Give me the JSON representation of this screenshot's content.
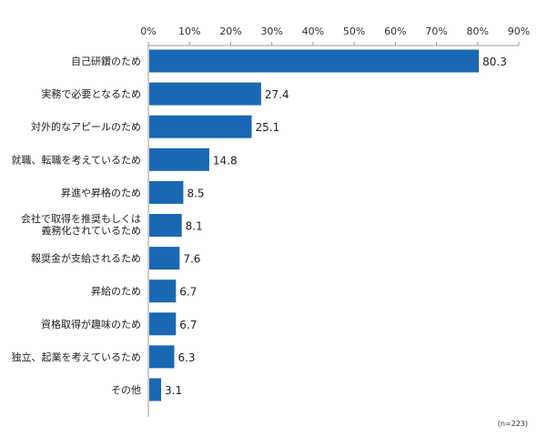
{
  "chart_data": {
    "type": "bar",
    "orientation": "horizontal",
    "categories": [
      "自己研鑽のため",
      "実務で必要となるため",
      "対外的なアピールのため",
      "就職、転職を考えているため",
      "昇進や昇格のため",
      [
        "会社で取得を推奨もしくは",
        "義務化されているため"
      ],
      "報奨金が支給されるため",
      "昇給のため",
      "資格取得が趣味のため",
      "独立、起業を考えているため",
      "その他"
    ],
    "values": [
      80.3,
      27.4,
      25.1,
      14.8,
      8.5,
      8.1,
      7.6,
      6.7,
      6.7,
      6.3,
      3.1
    ],
    "value_labels": [
      "80.3",
      "27.4",
      "25.1",
      "14.8",
      "8.5",
      "8.1",
      "7.6",
      "6.7",
      "6.7",
      "6.3",
      "3.1"
    ],
    "x_ticks": [
      "0%",
      "10%",
      "20%",
      "30%",
      "40%",
      "50%",
      "60%",
      "70%",
      "80%",
      "90%"
    ],
    "xlim": [
      0,
      90
    ],
    "tick_position": "top",
    "grid": false,
    "bar_color": "#1a68b4",
    "axis_color": "#999999",
    "note": "(n=223)"
  }
}
